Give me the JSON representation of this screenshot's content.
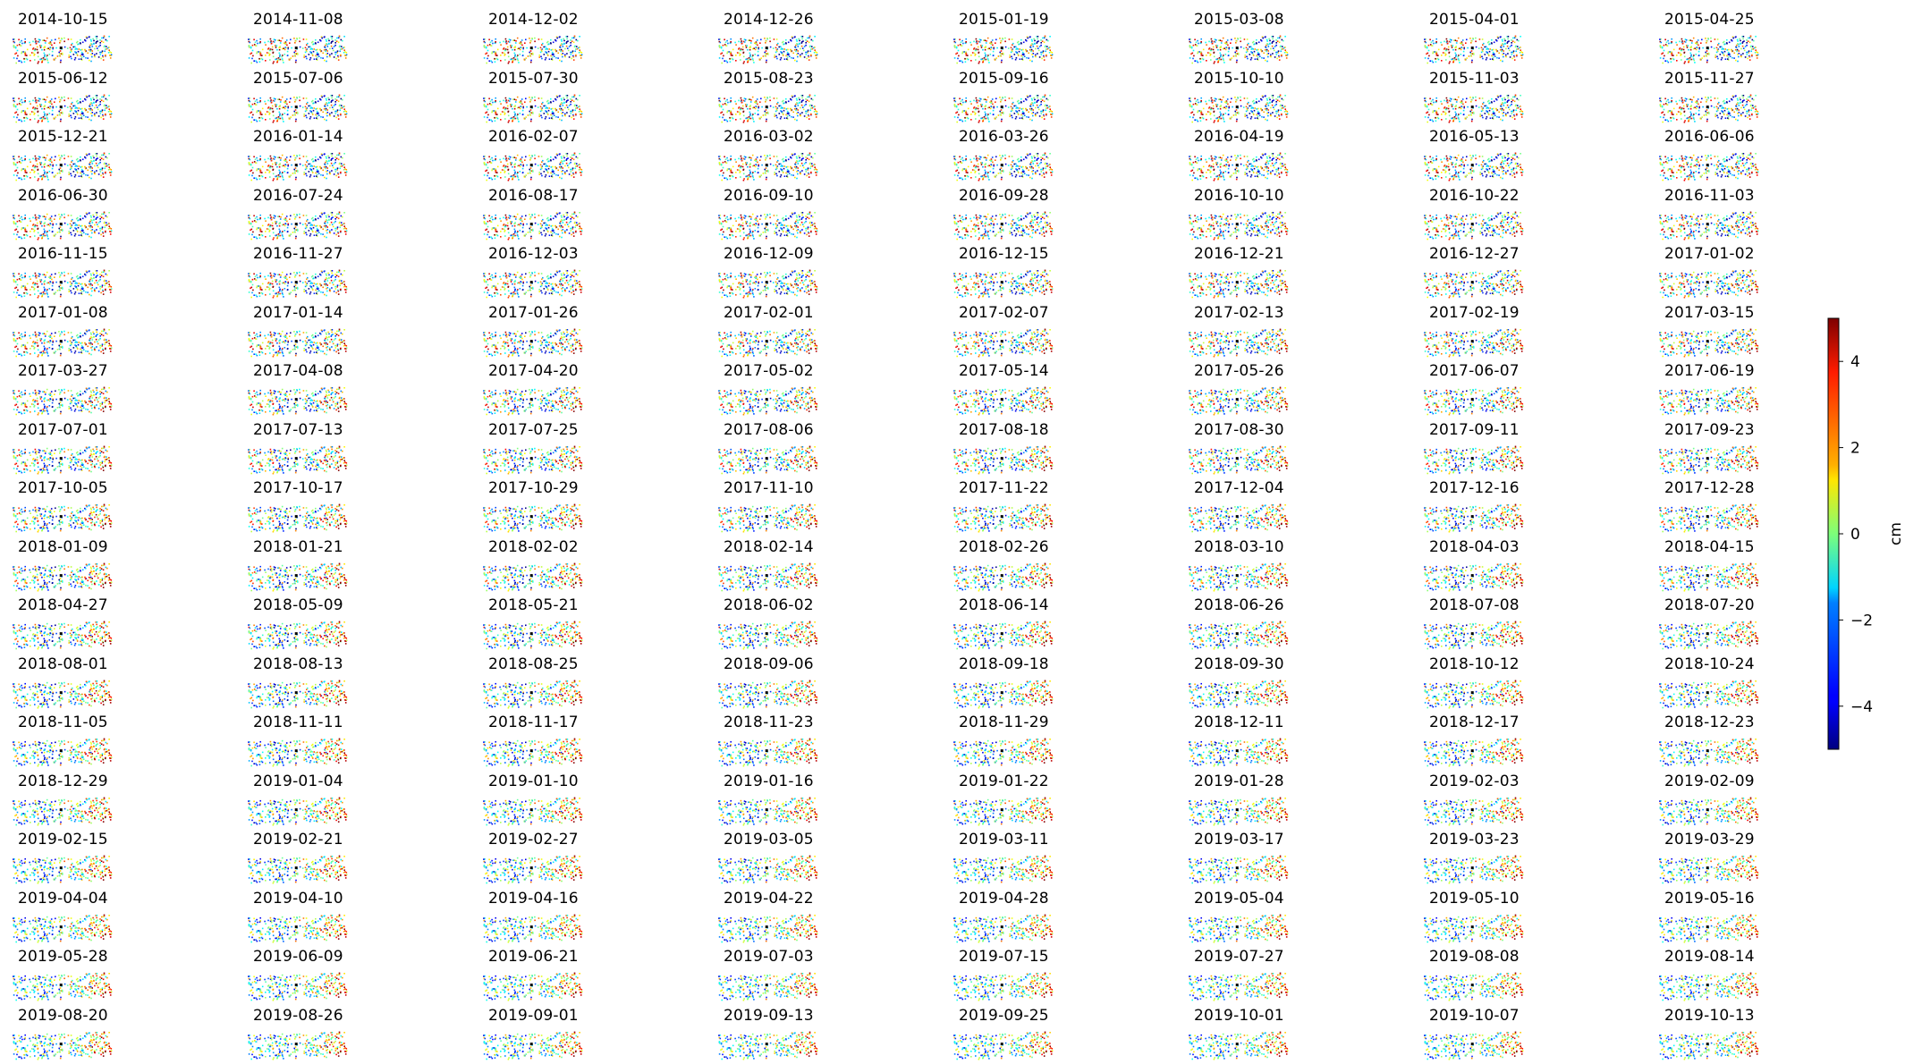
{
  "chart_data": {
    "type": "scatter",
    "description": "small-multiples grid of point maps (one per acquisition date), colored by displacement",
    "titles": [
      "2014-10-15",
      "2014-11-08",
      "2014-12-02",
      "2014-12-26",
      "2015-01-19",
      "2015-03-08",
      "2015-04-01",
      "2015-04-25",
      "2015-06-12",
      "2015-07-06",
      "2015-07-30",
      "2015-08-23",
      "2015-09-16",
      "2015-10-10",
      "2015-11-03",
      "2015-11-27",
      "2015-12-21",
      "2016-01-14",
      "2016-02-07",
      "2016-03-02",
      "2016-03-26",
      "2016-04-19",
      "2016-05-13",
      "2016-06-06",
      "2016-06-30",
      "2016-07-24",
      "2016-08-17",
      "2016-09-10",
      "2016-09-28",
      "2016-10-10",
      "2016-10-22",
      "2016-11-03",
      "2016-11-15",
      "2016-11-27",
      "2016-12-03",
      "2016-12-09",
      "2016-12-15",
      "2016-12-21",
      "2016-12-27",
      "2017-01-02",
      "2017-01-08",
      "2017-01-14",
      "2017-01-26",
      "2017-02-01",
      "2017-02-07",
      "2017-02-13",
      "2017-02-19",
      "2017-03-15",
      "2017-03-27",
      "2017-04-08",
      "2017-04-20",
      "2017-05-02",
      "2017-05-14",
      "2017-05-26",
      "2017-06-07",
      "2017-06-19",
      "2017-07-01",
      "2017-07-13",
      "2017-07-25",
      "2017-08-06",
      "2017-08-18",
      "2017-08-30",
      "2017-09-11",
      "2017-09-23",
      "2017-10-05",
      "2017-10-17",
      "2017-10-29",
      "2017-11-10",
      "2017-11-22",
      "2017-12-04",
      "2017-12-16",
      "2017-12-28",
      "2018-01-09",
      "2018-01-21",
      "2018-02-02",
      "2018-02-14",
      "2018-02-26",
      "2018-03-10",
      "2018-04-03",
      "2018-04-15",
      "2018-04-27",
      "2018-05-09",
      "2018-05-21",
      "2018-06-02",
      "2018-06-14",
      "2018-06-26",
      "2018-07-08",
      "2018-07-20",
      "2018-08-01",
      "2018-08-13",
      "2018-08-25",
      "2018-09-06",
      "2018-09-18",
      "2018-09-30",
      "2018-10-12",
      "2018-10-24",
      "2018-11-05",
      "2018-11-11",
      "2018-11-17",
      "2018-11-23",
      "2018-11-29",
      "2018-12-11",
      "2018-12-17",
      "2018-12-23",
      "2018-12-29",
      "2019-01-04",
      "2019-01-10",
      "2019-01-16",
      "2019-01-22",
      "2019-01-28",
      "2019-02-03",
      "2019-02-09",
      "2019-02-15",
      "2019-02-21",
      "2019-02-27",
      "2019-03-05",
      "2019-03-11",
      "2019-03-17",
      "2019-03-23",
      "2019-03-29",
      "2019-04-04",
      "2019-04-10",
      "2019-04-16",
      "2019-04-22",
      "2019-04-28",
      "2019-05-04",
      "2019-05-10",
      "2019-05-16",
      "2019-05-28",
      "2019-06-09",
      "2019-06-21",
      "2019-07-03",
      "2019-07-15",
      "2019-07-27",
      "2019-08-08",
      "2019-08-14",
      "2019-08-20",
      "2019-08-26",
      "2019-09-01",
      "2019-09-13",
      "2019-09-25",
      "2019-10-01",
      "2019-10-07",
      "2019-10-13"
    ],
    "colorbar": {
      "label": "cm",
      "ticks": [
        4,
        2,
        0,
        -2,
        -4
      ],
      "range": [
        -5,
        5
      ],
      "colormap": "jet"
    }
  }
}
